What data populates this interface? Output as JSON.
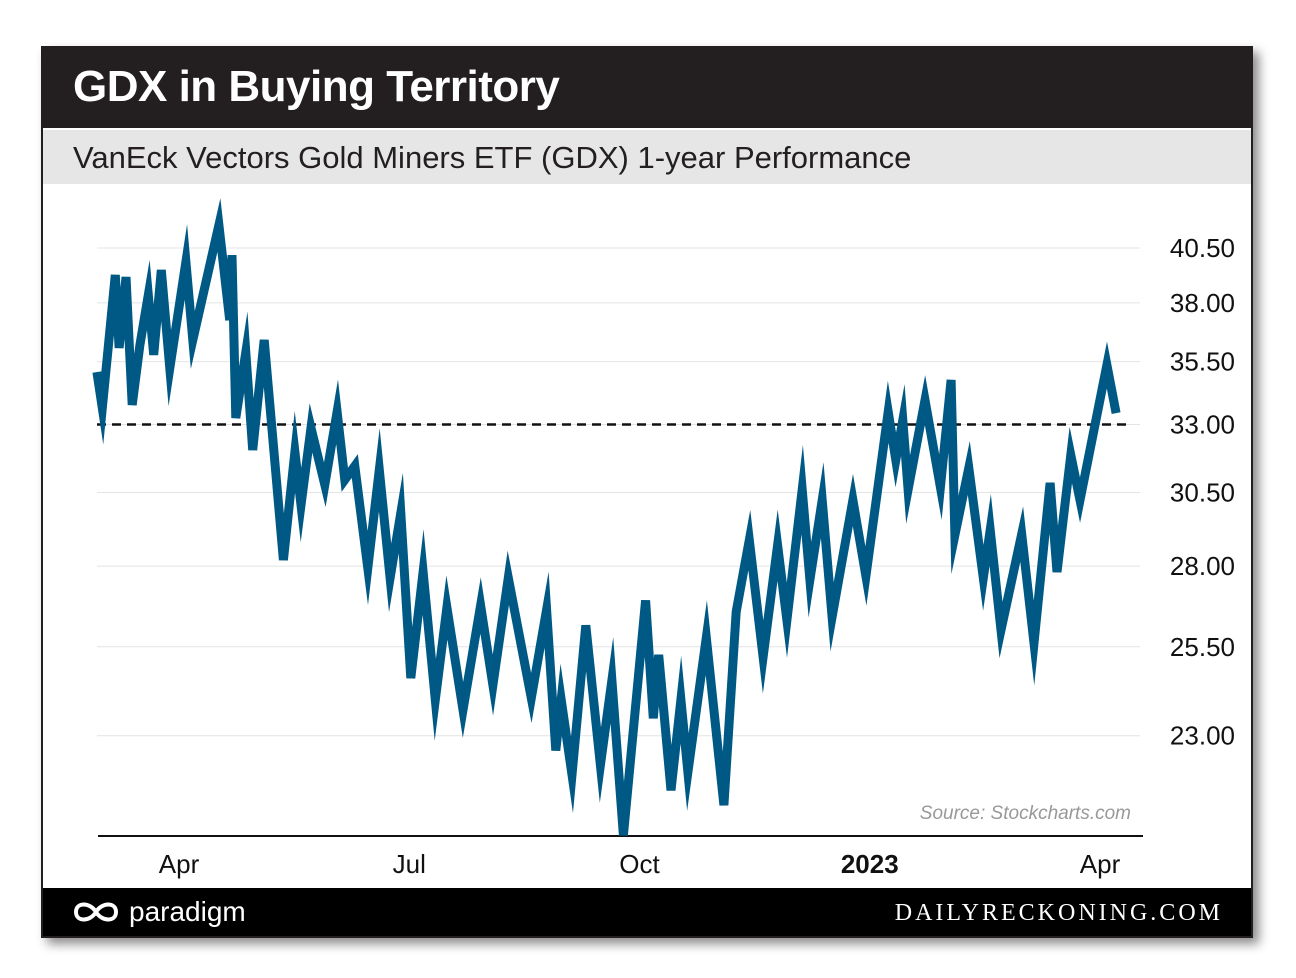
{
  "chart_data": {
    "type": "line",
    "title": "GDX in Buying Territory",
    "subtitle": "VanEck Vectors Gold Miners ETF (GDX) 1-year Performance",
    "xlabel": "",
    "ylabel": "",
    "x_unit": "months since Apr 2022",
    "x_ticks": [
      {
        "label": "Apr",
        "x": 0,
        "bold": false
      },
      {
        "label": "Jul",
        "x": 3,
        "bold": false
      },
      {
        "label": "Oct",
        "x": 6,
        "bold": false
      },
      {
        "label": "2023",
        "x": 9,
        "bold": true
      },
      {
        "label": "Apr",
        "x": 12,
        "bold": false
      }
    ],
    "y_ticks": [
      "40.50",
      "38.00",
      "35.50",
      "33.00",
      "30.50",
      "28.00",
      "25.50",
      "23.00"
    ],
    "y_scale": "log",
    "ylim": [
      20.5,
      41.6
    ],
    "xlim": [
      -1.07,
      12.21
    ],
    "reference_line": {
      "value": 33.0,
      "style": "dashed"
    },
    "annotation": "Source: Stockcharts.com",
    "grid": true,
    "series": [
      {
        "name": "GDX",
        "color": "#005984",
        "x": [
          -1.07,
          -1.0,
          -0.83,
          -0.78,
          -0.69,
          -0.61,
          -0.51,
          -0.4,
          -0.33,
          -0.23,
          -0.12,
          0.09,
          0.18,
          0.52,
          0.66,
          0.69,
          0.74,
          0.87,
          0.96,
          1.11,
          1.36,
          1.51,
          1.59,
          1.72,
          1.9,
          2.06,
          2.16,
          2.29,
          2.46,
          2.61,
          2.75,
          2.89,
          3.02,
          3.18,
          3.34,
          3.49,
          3.7,
          3.93,
          4.09,
          4.29,
          4.59,
          4.79,
          4.91,
          4.98,
          5.12,
          5.3,
          5.49,
          5.64,
          5.79,
          6.08,
          6.18,
          6.25,
          6.41,
          6.54,
          6.63,
          6.87,
          7.1,
          7.26,
          7.43,
          7.61,
          7.8,
          7.92,
          8.12,
          8.22,
          8.38,
          8.51,
          8.78,
          8.95,
          9.24,
          9.34,
          9.43,
          9.5,
          9.72,
          9.92,
          10.06,
          10.11,
          10.29,
          10.48,
          10.57,
          10.71,
          10.98,
          11.14,
          11.35,
          11.44,
          11.62,
          11.74,
          12.09,
          12.21
        ],
        "values": [
          35.07,
          33.64,
          39.25,
          36.07,
          39.16,
          33.76,
          36.19,
          38.35,
          35.78,
          39.48,
          35.23,
          39.85,
          36.4,
          41.59,
          37.25,
          40.17,
          33.25,
          35.89,
          32.04,
          36.4,
          28.2,
          31.97,
          30.06,
          32.87,
          30.77,
          33.49,
          30.95,
          31.45,
          27.94,
          31.31,
          27.62,
          29.78,
          24.59,
          27.81,
          23.98,
          26.69,
          23.7,
          26.75,
          24.39,
          27.62,
          24.03,
          26.62,
          22.61,
          23.98,
          21.98,
          26.14,
          22.23,
          24.53,
          20.49,
          26.91,
          23.47,
          25.26,
          21.59,
          23.98,
          22.05,
          25.77,
          21.22,
          26.56,
          28.86,
          25.2,
          28.69,
          26.3,
          30.6,
          27.56,
          30.23,
          26.4,
          30.23,
          27.68,
          33.49,
          31.67,
          33.17,
          30.6,
          33.95,
          30.69,
          34.75,
          29.03,
          31.38,
          27.62,
          29.2,
          26.0,
          29.06,
          25.61,
          30.84,
          27.81,
          31.85,
          30.23,
          35.36,
          33.44
        ]
      }
    ]
  },
  "footer": {
    "brand": "paradigm",
    "site": "DAILYRECKONING.COM"
  }
}
